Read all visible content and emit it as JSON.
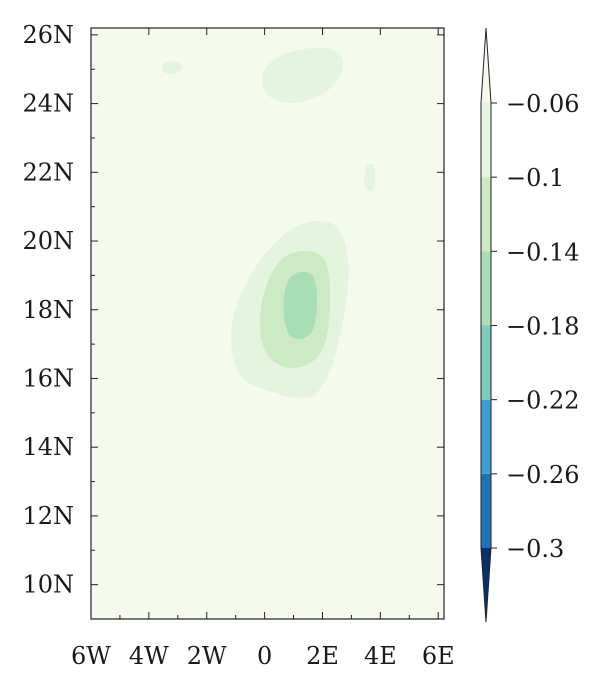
{
  "chart_data": {
    "type": "heatmap",
    "subtype": "filled-contour map",
    "title": "",
    "xlabel": "",
    "ylabel": "",
    "x_ticks": [
      {
        "value": -6,
        "label": "6W"
      },
      {
        "value": -4,
        "label": "4W"
      },
      {
        "value": -2,
        "label": "2W"
      },
      {
        "value": 0,
        "label": "0"
      },
      {
        "value": 2,
        "label": "2E"
      },
      {
        "value": 4,
        "label": "4E"
      },
      {
        "value": 6,
        "label": "6E"
      }
    ],
    "y_ticks": [
      {
        "value": 10,
        "label": "10N"
      },
      {
        "value": 12,
        "label": "12N"
      },
      {
        "value": 14,
        "label": "14N"
      },
      {
        "value": 16,
        "label": "16N"
      },
      {
        "value": 18,
        "label": "18N"
      },
      {
        "value": 20,
        "label": "20N"
      },
      {
        "value": 22,
        "label": "22N"
      },
      {
        "value": 24,
        "label": "24N"
      },
      {
        "value": 26,
        "label": "26N"
      }
    ],
    "xlim": [
      -6,
      6.2
    ],
    "ylim": [
      9,
      26.2
    ],
    "colorbar": {
      "levels": [
        -0.3,
        -0.26,
        -0.22,
        -0.18,
        -0.14,
        -0.1,
        -0.06
      ],
      "labels": [
        "−0.3",
        "−0.26",
        "−0.22",
        "−0.18",
        "−0.14",
        "−0.1",
        "−0.06"
      ],
      "colors": [
        "#08306b",
        "#2171b5",
        "#3f9fd2",
        "#7fcdbb",
        "#a8ddb5",
        "#ccebc5",
        "#e5f4de",
        "#f4faee"
      ],
      "extend": "both",
      "orientation": "vertical",
      "placement": "right"
    },
    "background_color": "#f4faee",
    "regions": [
      {
        "name": "main-anomaly",
        "level": -0.1,
        "center": [
          1.2,
          17.5
        ],
        "shape": "elongated oval",
        "lon_range": [
          -0.9,
          2.8
        ],
        "lat_range": [
          15.5,
          20.4
        ]
      },
      {
        "name": "main-anomaly",
        "level": -0.14,
        "center": [
          1.2,
          17.8
        ],
        "lon_range": [
          -0.1,
          2.0
        ],
        "lat_range": [
          16.1,
          19.6
        ]
      },
      {
        "name": "main-anomaly-core",
        "level": -0.18,
        "center": [
          1.1,
          17.9
        ],
        "lon_range": [
          0.6,
          1.6
        ],
        "lat_range": [
          17.1,
          18.9
        ]
      },
      {
        "name": "north-patch",
        "level": -0.1,
        "center": [
          1.0,
          24.8
        ],
        "lon_range": [
          -0.1,
          2.6
        ],
        "lat_range": [
          24.0,
          25.5
        ]
      },
      {
        "name": "northwest-spot",
        "level": -0.1,
        "center": [
          -2.8,
          25.0
        ],
        "lon_range": [
          -3.2,
          -2.4
        ],
        "lat_range": [
          24.8,
          25.2
        ]
      },
      {
        "name": "east-spot",
        "level": -0.1,
        "center": [
          3.7,
          21.8
        ],
        "lon_range": [
          3.5,
          3.9
        ],
        "lat_range": [
          21.4,
          22.1
        ]
      }
    ]
  }
}
